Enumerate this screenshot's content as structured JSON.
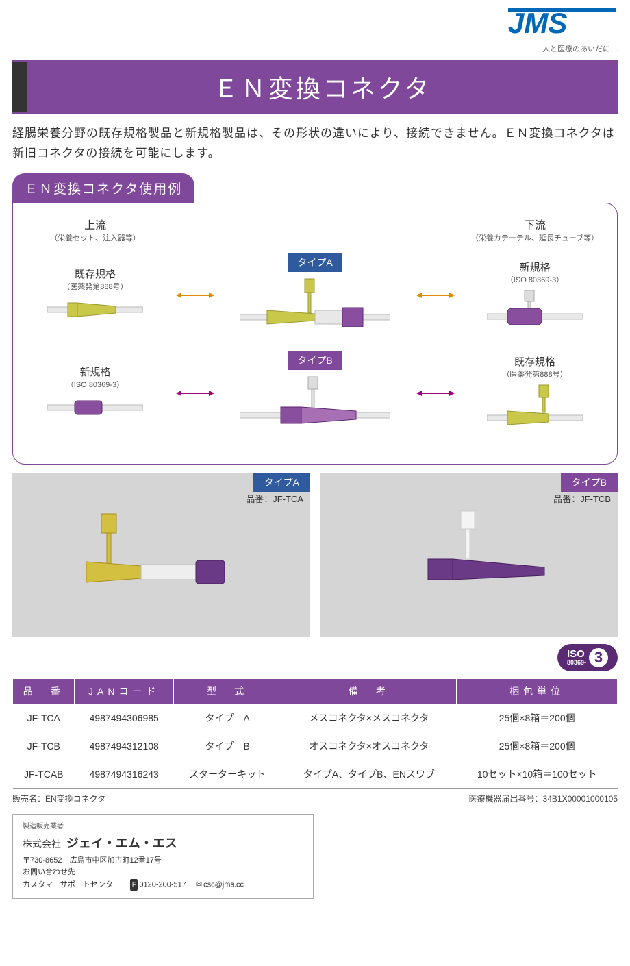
{
  "logo": {
    "text": "JMS",
    "tagline": "人と医療のあいだに…",
    "color": "#0068b6"
  },
  "title": "ＥＮ変換コネクタ",
  "intro": "経腸栄養分野の既存規格製品と新規格製品は、その形状の違いにより、接続できません。ＥＮ変換コネクタは新旧コネクタの接続を可能にします。",
  "usage": {
    "heading": "ＥＮ変換コネクタ使用例",
    "upstream": {
      "label": "上流",
      "sub": "（栄養セット、注入器等）"
    },
    "downstream": {
      "label": "下流",
      "sub": "（栄養カテーテル、延長チューブ等）"
    },
    "left_a": {
      "tag": "既存規格",
      "sub": "（医薬発第888号）"
    },
    "right_a": {
      "tag": "新規格",
      "sub": "（ISO 80369-3）"
    },
    "left_b": {
      "tag": "新規格",
      "sub": "（ISO 80369-3）"
    },
    "right_b": {
      "tag": "既存規格",
      "sub": "（医薬発第888号）"
    },
    "type_a": "タイプA",
    "type_b": "タイプB",
    "colors": {
      "yellow": "#c9c84a",
      "purple": "#8a4e9e",
      "arrow_a": "#e08a00",
      "arrow_b": "#a3007c",
      "chip_a_bg": "#2f5a9e",
      "chip_b_bg": "#80489a"
    }
  },
  "products": {
    "a": {
      "chip": "タイプA",
      "pn_label": "品番：",
      "pn": "JF-TCA"
    },
    "b": {
      "chip": "タイプB",
      "pn_label": "品番：",
      "pn": "JF-TCB"
    }
  },
  "iso": {
    "top": "ISO",
    "mid": "80369-",
    "num": "3"
  },
  "table": {
    "headers": [
      "品　番",
      "JANコード",
      "型　式",
      "備　考",
      "梱包単位"
    ],
    "rows": [
      [
        "JF-TCA",
        "4987494306985",
        "タイプ　A",
        "メスコネクタ×メスコネクタ",
        "25個×8箱＝200個"
      ],
      [
        "JF-TCB",
        "4987494312108",
        "タイプ　B",
        "オスコネクタ×オスコネクタ",
        "25個×8箱＝200個"
      ],
      [
        "JF-TCAB",
        "4987494316243",
        "スターターキット",
        "タイプA、タイプB、ENスワブ",
        "10セット×10箱＝100セット"
      ]
    ]
  },
  "notes": {
    "left": "販売名：EN変換コネクタ",
    "right": "医療機器届出番号：34B1X00001000105"
  },
  "footer": {
    "mfr": "製造販売業者",
    "company_prefix": "株式会社 ",
    "company": "ジェイ・エム・エス",
    "addr": "〒730-8652　広島市中区加古町12番17号",
    "contact": "お問い合わせ先",
    "center": "カスタマーサポートセンター　",
    "tel": "0120-200-517　",
    "email": "csc@jms.cc"
  }
}
